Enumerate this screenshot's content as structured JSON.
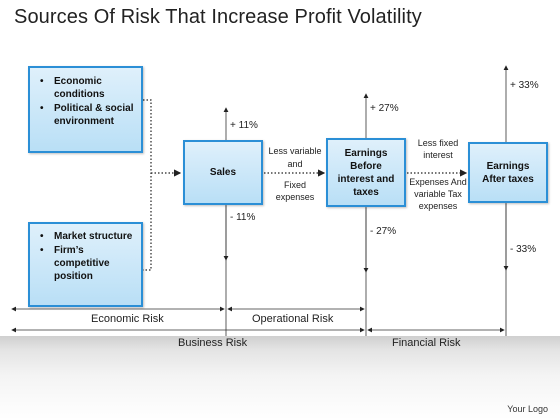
{
  "title": "Sources Of Risk That Increase Profit Volatility",
  "boxes": {
    "box1_items": [
      "Economic conditions",
      "Political & social environment"
    ],
    "box2_items": [
      "Market structure",
      "Firm’s competitive position"
    ],
    "sales": "Sales",
    "ebit": "Earnings Before interest and taxes",
    "eat": "Earnings After taxes"
  },
  "arrow_labels": {
    "less_variable": "Less variable",
    "and": "and",
    "fixed_expenses": "Fixed expenses",
    "less_fixed": "Less fixed interest",
    "expenses_variable": "Expenses And variable Tax expenses"
  },
  "percentages": {
    "sales_up": "+ 11%",
    "sales_down": "- 11%",
    "ebit_up": "+ 27%",
    "ebit_down": "- 27%",
    "eat_up": "+ 33%",
    "eat_down": "- 33%"
  },
  "brackets": {
    "economic_risk": "Economic Risk",
    "operational_risk": "Operational Risk",
    "business_risk": "Business Risk",
    "financial_risk": "Financial Risk"
  },
  "logo": "Your Logo",
  "colors": {
    "box_border": "#2b8fd6",
    "box_fill": "#c8e6f8"
  }
}
